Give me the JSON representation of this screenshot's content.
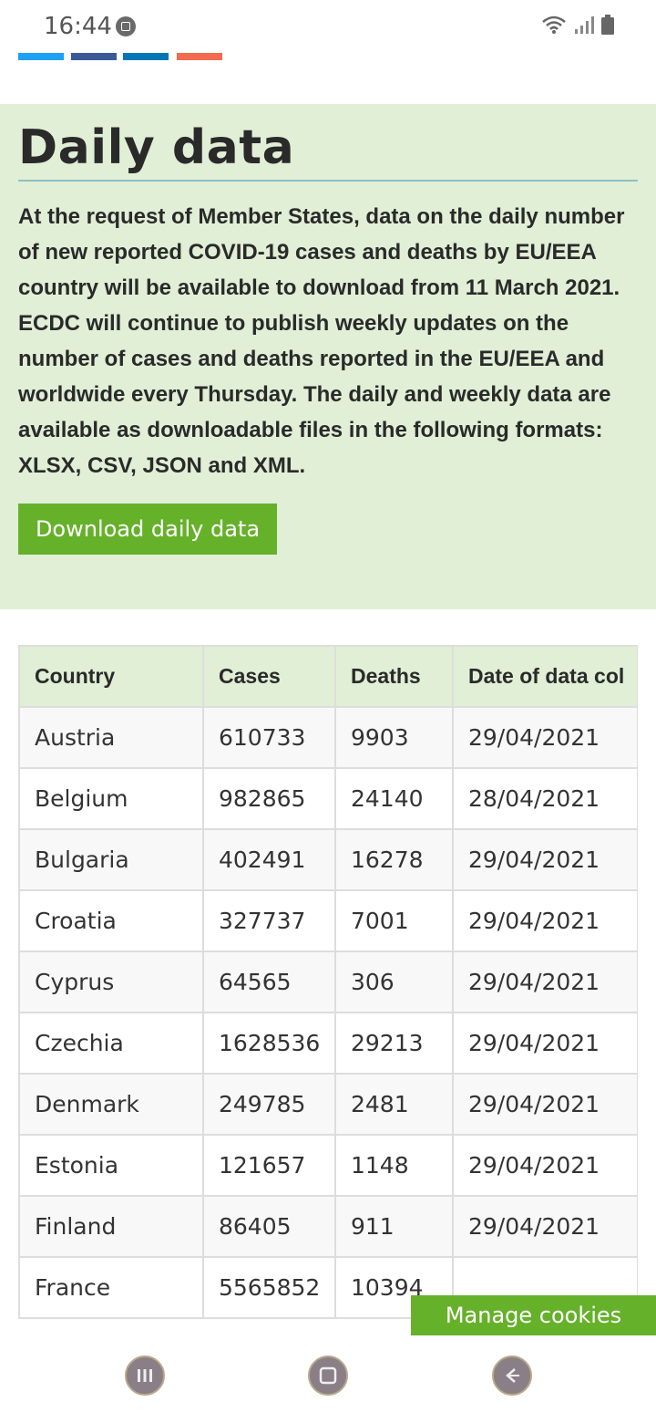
{
  "status_bar": {
    "time": "16:44",
    "icons": [
      "screenshot-badge-icon",
      "wifi-icon",
      "signal-icon",
      "battery-icon"
    ]
  },
  "share_bars": {
    "colors": [
      "#1da1f2",
      "#3b5998",
      "#0077b5",
      "#f26b4f"
    ]
  },
  "info": {
    "title": "Daily data",
    "text": "At the request of Member States, data on the daily number of new reported COVID-19 cases and deaths by EU/EEA country will be available to download from 11 March 2021. ECDC will continue to publish weekly updates on the number of cases and deaths reported in the EU/EEA and worldwide every Thursday. The daily and weekly data are available as downloadable files in the following formats: XLSX, CSV, JSON and XML.",
    "download_label": "Download daily data"
  },
  "table": {
    "headers": [
      "Country",
      "Cases",
      "Deaths",
      "Date of data col"
    ],
    "rows": [
      [
        "Austria",
        "610733",
        "9903",
        "29/04/2021"
      ],
      [
        "Belgium",
        "982865",
        "24140",
        "28/04/2021"
      ],
      [
        "Bulgaria",
        "402491",
        "16278",
        "29/04/2021"
      ],
      [
        "Croatia",
        "327737",
        "7001",
        "29/04/2021"
      ],
      [
        "Cyprus",
        "64565",
        "306",
        "29/04/2021"
      ],
      [
        "Czechia",
        "1628536",
        "29213",
        "29/04/2021"
      ],
      [
        "Denmark",
        "249785",
        "2481",
        "29/04/2021"
      ],
      [
        "Estonia",
        "121657",
        "1148",
        "29/04/2021"
      ],
      [
        "Finland",
        "86405",
        "911",
        "29/04/2021"
      ],
      [
        "France",
        "5565852",
        "10394",
        ""
      ]
    ]
  },
  "cookie": {
    "label": "Manage cookies"
  },
  "colors": {
    "accent_green": "#66b12a",
    "panel_green": "#e0efd6"
  },
  "nav": {
    "buttons": [
      "recent-apps-icon",
      "home-icon",
      "back-icon"
    ]
  }
}
